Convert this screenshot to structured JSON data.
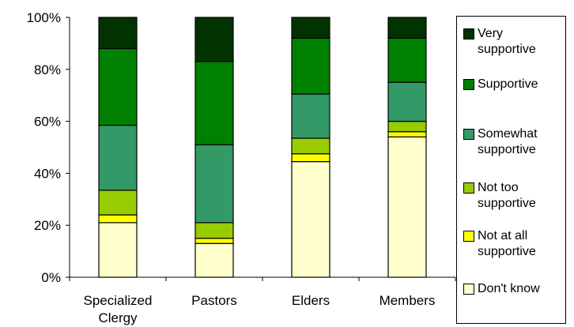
{
  "chart_data": {
    "type": "bar",
    "stacked": true,
    "categories": [
      "Specialized\nClergy",
      "Pastors",
      "Elders",
      "Members"
    ],
    "yticks": [
      "0%",
      "20%",
      "40%",
      "60%",
      "80%",
      "100%"
    ],
    "ylim": [
      0,
      100
    ],
    "legend_position": "right",
    "series": [
      {
        "name": "Don't know",
        "color": "#FFFFCC",
        "values": [
          21,
          13,
          44.5,
          54
        ]
      },
      {
        "name": "Not at all\nsupportive",
        "color": "#FFFF00",
        "values": [
          3,
          2,
          3,
          2
        ]
      },
      {
        "name": "Not too\nsupportive",
        "color": "#99CC00",
        "values": [
          9.5,
          6,
          6,
          4
        ]
      },
      {
        "name": "Somewhat\nsupportive",
        "color": "#339966",
        "values": [
          25,
          30,
          17,
          15
        ]
      },
      {
        "name": "Supportive",
        "color": "#008000",
        "values": [
          29.5,
          32,
          21.5,
          17
        ]
      },
      {
        "name": "Very\nsupportive",
        "color": "#003300",
        "values": [
          12,
          17,
          8,
          8
        ]
      }
    ]
  }
}
